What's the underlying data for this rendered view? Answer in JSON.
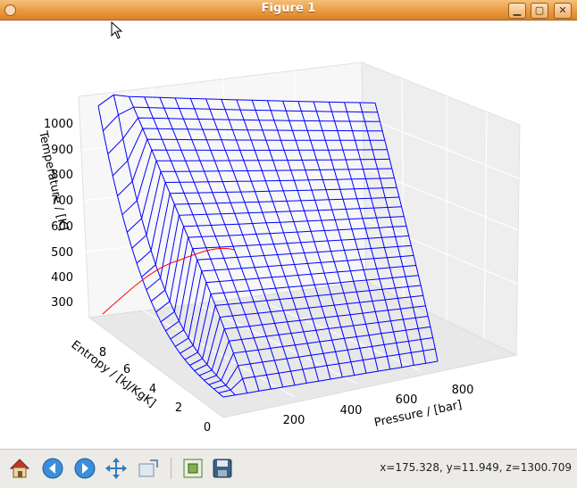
{
  "window": {
    "title": "Figure 1"
  },
  "controls": {
    "minimize": "▁",
    "maximize": "▢",
    "close": "✕"
  },
  "axes": {
    "z_label": "Temperature / [K]",
    "y_label": "Entropy / [kJ/KgK]",
    "x_label": "Pressure / [bar]",
    "z_ticks": [
      "1000",
      "900",
      "800",
      "700",
      "600",
      "500",
      "400",
      "300"
    ],
    "y_ticks": [
      "8",
      "6",
      "4",
      "2",
      "0"
    ],
    "x_ticks": [
      "200",
      "400",
      "600",
      "800"
    ]
  },
  "colors": {
    "surface": "#0000ff",
    "saturation_dome": "#ff0000",
    "pane": "#f2f2f2"
  },
  "status": {
    "coords": "x=175.328, y=11.949, z=1300.709"
  },
  "toolbar": {
    "icons": [
      "home-icon",
      "back-arrow-icon",
      "forward-arrow-icon",
      "pan-icon",
      "zoom-icon",
      "subplots-icon",
      "save-icon"
    ]
  }
}
